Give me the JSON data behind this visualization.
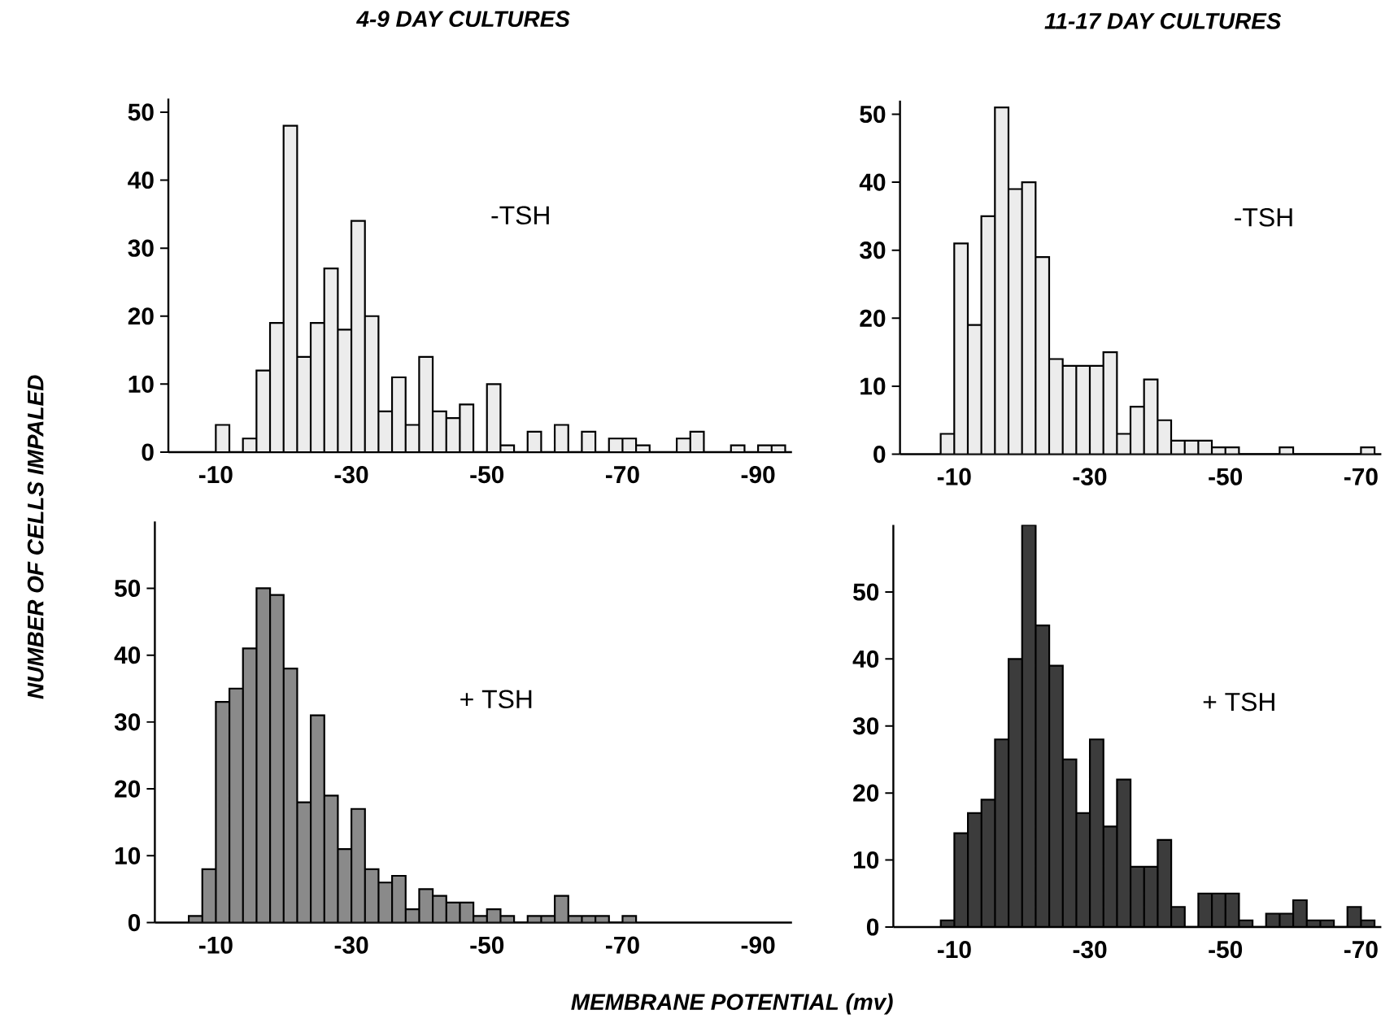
{
  "chart_data": [
    {
      "type": "histogram",
      "title": "4-9 DAY CULTURES",
      "ylabel": "NUMBER OF CELLS IMPALED",
      "annotations": [
        "-TSH"
      ],
      "color": "#ececec",
      "bins": [
        -10,
        -12,
        -14,
        -16,
        -18,
        -20,
        -22,
        -24,
        -26,
        -28,
        -30,
        -32,
        -34,
        -36,
        -38,
        -40,
        -42,
        -44,
        -46,
        -48,
        -50,
        -52,
        -54,
        -56,
        -58,
        -60,
        -62,
        -64,
        -66,
        -68,
        -70,
        -72,
        -74,
        -76,
        -78,
        -80,
        -82,
        -84,
        -86,
        -88,
        -90,
        -92,
        -94
      ],
      "values": [
        4,
        0,
        2,
        12,
        19,
        48,
        14,
        19,
        27,
        18,
        34,
        20,
        6,
        11,
        4,
        14,
        6,
        5,
        7,
        0,
        10,
        1,
        0,
        3,
        0,
        4,
        0,
        3,
        0,
        2,
        2,
        1,
        0,
        0,
        2,
        3,
        0,
        0,
        1,
        0,
        1,
        1
      ],
      "xlim": [
        -3,
        -95
      ],
      "ylim": [
        0,
        52
      ],
      "xticks": [
        -10,
        -30,
        -50,
        -70,
        -90
      ],
      "yticks": [
        0,
        10,
        20,
        30,
        40,
        50
      ]
    },
    {
      "type": "histogram",
      "title": "11-17 DAY CULTURES",
      "annotations": [
        "-TSH"
      ],
      "color": "#ececec",
      "bins": [
        -8,
        -10,
        -12,
        -14,
        -16,
        -18,
        -20,
        -22,
        -24,
        -26,
        -28,
        -30,
        -32,
        -34,
        -36,
        -38,
        -40,
        -42,
        -44,
        -46,
        -48,
        -50,
        -52,
        -54,
        -56,
        -58,
        -60,
        -62,
        -64,
        -66,
        -68,
        -70,
        -72
      ],
      "values": [
        3,
        31,
        19,
        35,
        51,
        39,
        40,
        29,
        14,
        13,
        13,
        13,
        15,
        3,
        7,
        11,
        5,
        2,
        2,
        2,
        1,
        1,
        0,
        0,
        0,
        1,
        0,
        0,
        0,
        0,
        0,
        1
      ],
      "xlim": [
        -2,
        -73
      ],
      "ylim": [
        0,
        52
      ],
      "xticks": [
        -10,
        -30,
        -50,
        -70
      ],
      "yticks": [
        0,
        10,
        20,
        30,
        40,
        50
      ]
    },
    {
      "type": "histogram",
      "xlabel": "MEMBRANE POTENTIAL (mv)",
      "annotations": [
        "+ TSH"
      ],
      "color": "#8a8a8a",
      "bins": [
        -6,
        -8,
        -10,
        -12,
        -14,
        -16,
        -18,
        -20,
        -22,
        -24,
        -26,
        -28,
        -30,
        -32,
        -34,
        -36,
        -38,
        -40,
        -42,
        -44,
        -46,
        -48,
        -50,
        -52,
        -54,
        -56,
        -58,
        -60,
        -62,
        -64,
        -66,
        -68,
        -70,
        -72
      ],
      "values": [
        1,
        8,
        33,
        35,
        41,
        50,
        49,
        38,
        18,
        31,
        19,
        11,
        17,
        8,
        6,
        7,
        2,
        5,
        4,
        3,
        3,
        1,
        2,
        1,
        0,
        1,
        1,
        4,
        1,
        1,
        1,
        0,
        1
      ],
      "xlim": [
        -1,
        -95
      ],
      "ylim": [
        0,
        60
      ],
      "xticks": [
        -10,
        -30,
        -50,
        -70,
        -90
      ],
      "yticks": [
        0,
        10,
        20,
        30,
        40,
        50
      ]
    },
    {
      "type": "histogram",
      "annotations": [
        "+ TSH"
      ],
      "color": "#3c3c3c",
      "bins": [
        -8,
        -10,
        -12,
        -14,
        -16,
        -18,
        -20,
        -22,
        -24,
        -26,
        -28,
        -30,
        -32,
        -34,
        -36,
        -38,
        -40,
        -42,
        -44,
        -46,
        -48,
        -50,
        -52,
        -54,
        -56,
        -58,
        -60,
        -62,
        -64,
        -66,
        -68,
        -70,
        -72
      ],
      "values": [
        1,
        14,
        17,
        19,
        28,
        40,
        60,
        45,
        39,
        25,
        17,
        28,
        15,
        22,
        9,
        9,
        13,
        3,
        0,
        5,
        5,
        5,
        1,
        0,
        2,
        2,
        4,
        1,
        1,
        0,
        3,
        1
      ],
      "xlim": [
        -1,
        -73
      ],
      "ylim": [
        0,
        60
      ],
      "xticks": [
        -10,
        -30,
        -50,
        -70
      ],
      "yticks": [
        0,
        10,
        20,
        30,
        40,
        50
      ]
    }
  ]
}
